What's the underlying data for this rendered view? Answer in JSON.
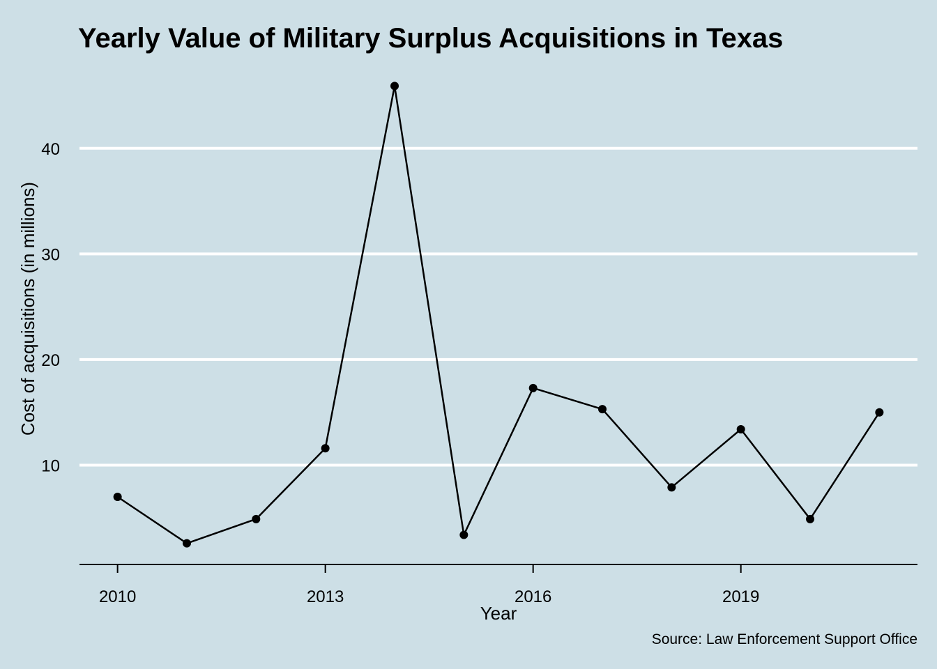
{
  "chart_data": {
    "type": "line",
    "title": "Yearly Value of Military Surplus Acquisitions in Texas",
    "xlabel": "Year",
    "ylabel": "Cost of acquisitions (in millions)",
    "caption": "Source: Law Enforcement Support Office",
    "x": [
      2010,
      2011,
      2012,
      2013,
      2014,
      2015,
      2016,
      2017,
      2018,
      2019,
      2020,
      2021
    ],
    "series": [
      {
        "values": [
          7.0,
          2.6,
          4.9,
          11.6,
          45.9,
          3.4,
          17.3,
          15.3,
          7.9,
          13.4,
          4.9,
          15.0
        ]
      }
    ],
    "xlim": [
      2009.45,
      2021.55
    ],
    "ylim": [
      0.6,
      48.1
    ],
    "x_ticks": [
      2010,
      2013,
      2016,
      2019
    ],
    "x_tick_labels": [
      "2010",
      "2013",
      "2016",
      "2019"
    ],
    "y_ticks": [
      10,
      20,
      30,
      40
    ],
    "y_tick_labels": [
      "10",
      "20",
      "30",
      "40"
    ],
    "grid": "horizontal-major",
    "colors": {
      "background": "#cddfe6",
      "gridline": "#ffffff",
      "series": "#000000"
    }
  }
}
